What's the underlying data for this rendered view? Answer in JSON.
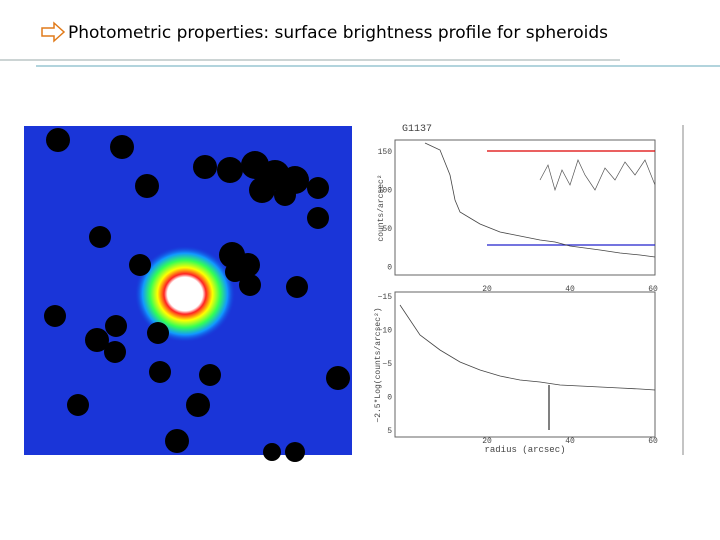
{
  "slide": {
    "title": "Photometric properties: surface brightness profile for spheroids",
    "figure": {
      "label": "G1137",
      "upper_panel": {
        "y_label": "counts/arcsec²",
        "y_ticks": [
          "150",
          "100",
          "50",
          "0"
        ],
        "x_ticks": [
          "20",
          "40",
          "60"
        ]
      },
      "lower_panel": {
        "y_label": "−2.5*Log(counts/arcsec²)",
        "y_ticks": [
          "−15",
          "−10",
          "−5",
          "0",
          "5"
        ],
        "x_ticks": [
          "20",
          "40",
          "60"
        ],
        "x_label": "radius (arcsec)"
      }
    }
  }
}
